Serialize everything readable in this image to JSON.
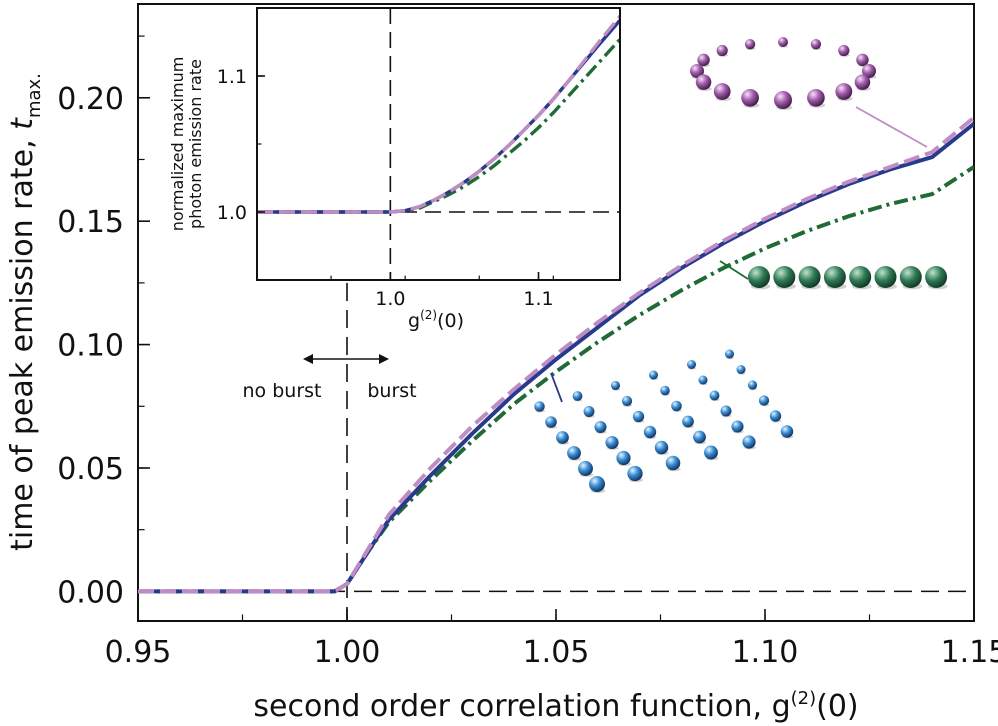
{
  "colors": {
    "square": "#283a8c",
    "ring": "#c08cc4",
    "chain": "#1f6a35",
    "ring_bead": "#9a4fa3",
    "chain_bead": "#2f7a55",
    "square_bead": "#3b8fd6"
  },
  "chart_data": {
    "type": "line",
    "main": {
      "xlabel_prefix": "second order correlation function, g",
      "xlabel_sup": "(2)",
      "xlabel_suffix": "(0)",
      "ylabel_prefix": "time of peak emission rate, ",
      "ylabel_var": "t",
      "ylabel_sub": "max.",
      "xlim": [
        0.95,
        1.15
      ],
      "ylim": [
        -0.012,
        0.238
      ],
      "xticks": [
        0.95,
        1.0,
        1.05,
        1.1,
        1.15
      ],
      "xtick_labels": [
        "0.95",
        "1.00",
        "1.05",
        "1.10",
        "1.15"
      ],
      "yticks": [
        0.0,
        0.05,
        0.1,
        0.15,
        0.2
      ],
      "ytick_labels": [
        "0.00",
        "0.05",
        "0.10",
        "0.15",
        "0.20"
      ],
      "reference_lines": {
        "vertical_x": 1.0,
        "horizontal_y": 0.0
      },
      "series": [
        {
          "name": "square lattice",
          "style": "solid",
          "x": [
            0.95,
            0.99,
            0.997,
            1.0,
            1.005,
            1.01,
            1.02,
            1.03,
            1.04,
            1.05,
            1.06,
            1.07,
            1.08,
            1.09,
            1.1,
            1.11,
            1.12,
            1.13,
            1.14,
            1.15
          ],
          "y": [
            0.0,
            0.0,
            0.0,
            0.003,
            0.016,
            0.029,
            0.047,
            0.064,
            0.08,
            0.094,
            0.107,
            0.12,
            0.131,
            0.141,
            0.15,
            0.158,
            0.165,
            0.171,
            0.176,
            0.1895
          ]
        },
        {
          "name": "ring",
          "style": "dashed",
          "x": [
            0.95,
            0.99,
            0.997,
            1.0,
            1.005,
            1.01,
            1.02,
            1.03,
            1.04,
            1.05,
            1.06,
            1.07,
            1.08,
            1.09,
            1.1,
            1.11,
            1.12,
            1.13,
            1.14,
            1.15
          ],
          "y": [
            0.0,
            0.0,
            0.0,
            0.003,
            0.017,
            0.031,
            0.05,
            0.067,
            0.082,
            0.096,
            0.109,
            0.121,
            0.132,
            0.142,
            0.151,
            0.159,
            0.166,
            0.172,
            0.178,
            0.192
          ]
        },
        {
          "name": "chain",
          "style": "dashdot",
          "x": [
            0.95,
            0.99,
            0.997,
            1.0,
            1.005,
            1.01,
            1.02,
            1.03,
            1.04,
            1.05,
            1.06,
            1.07,
            1.08,
            1.09,
            1.1,
            1.11,
            1.12,
            1.13,
            1.14,
            1.15
          ],
          "y": [
            0.0,
            0.0,
            0.0,
            0.003,
            0.016,
            0.028,
            0.045,
            0.061,
            0.076,
            0.089,
            0.101,
            0.112,
            0.122,
            0.131,
            0.139,
            0.146,
            0.152,
            0.157,
            0.161,
            0.172
          ]
        }
      ],
      "annotations": {
        "no_burst": "no burst",
        "burst": "burst"
      }
    },
    "inset": {
      "xlabel_prefix": "g",
      "xlabel_sup": "(2)",
      "xlabel_suffix": "(0)",
      "ylabel_line1": "normalized maximum",
      "ylabel_line2": "photon emission rate",
      "xlim": [
        0.91,
        1.155
      ],
      "ylim": [
        0.95,
        1.15
      ],
      "xticks": [
        1.0,
        1.1
      ],
      "xtick_labels": [
        "1.0",
        "1.1"
      ],
      "yticks": [
        1.0,
        1.1
      ],
      "ytick_labels": [
        "1.0",
        "1.1"
      ],
      "reference_lines": {
        "vertical_x": 1.0,
        "horizontal_y": 1.0
      },
      "series": [
        {
          "name": "square lattice",
          "style": "solid",
          "x": [
            0.91,
            0.99,
            1.0,
            1.01,
            1.02,
            1.03,
            1.04,
            1.05,
            1.06,
            1.07,
            1.08,
            1.09,
            1.1,
            1.11,
            1.12,
            1.13,
            1.14,
            1.155
          ],
          "y": [
            1.0,
            1.0,
            1.0,
            1.001,
            1.004,
            1.009,
            1.015,
            1.022,
            1.03,
            1.039,
            1.049,
            1.06,
            1.071,
            1.083,
            1.096,
            1.109,
            1.122,
            1.141
          ]
        },
        {
          "name": "ring",
          "style": "dashed",
          "x": [
            0.91,
            0.99,
            1.0,
            1.01,
            1.02,
            1.03,
            1.04,
            1.05,
            1.06,
            1.07,
            1.08,
            1.09,
            1.1,
            1.11,
            1.12,
            1.13,
            1.14,
            1.155
          ],
          "y": [
            1.0,
            1.0,
            1.0,
            1.001,
            1.004,
            1.009,
            1.015,
            1.022,
            1.03,
            1.039,
            1.049,
            1.06,
            1.071,
            1.083,
            1.096,
            1.11,
            1.124,
            1.144
          ]
        },
        {
          "name": "chain",
          "style": "dashdot",
          "x": [
            0.91,
            0.99,
            1.0,
            1.01,
            1.02,
            1.03,
            1.04,
            1.05,
            1.06,
            1.07,
            1.08,
            1.09,
            1.1,
            1.11,
            1.12,
            1.13,
            1.14,
            1.155
          ],
          "y": [
            1.0,
            1.0,
            1.0,
            1.001,
            1.003,
            1.008,
            1.013,
            1.019,
            1.026,
            1.034,
            1.043,
            1.052,
            1.062,
            1.073,
            1.085,
            1.097,
            1.109,
            1.127
          ]
        }
      ]
    }
  }
}
